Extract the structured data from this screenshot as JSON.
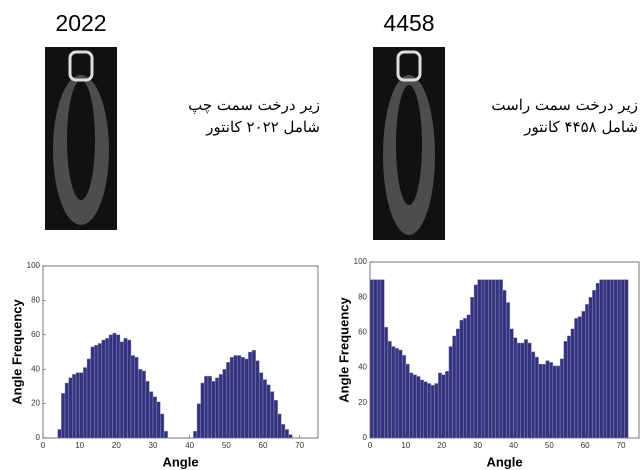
{
  "panels": [
    {
      "title": "2022",
      "caption": [
        "زیر درخت سمت چپ",
        "شامل ۲۰۲۲ کانتور"
      ]
    },
    {
      "title": "4458",
      "caption": [
        "زیر درخت سمت راست",
        "شامل ۴۴۵۸ کانتور"
      ]
    }
  ],
  "chart_data": [
    {
      "type": "histogram",
      "xlabel": "Angle",
      "ylabel": "Angle Frequency",
      "color": "#34337e",
      "xlim": [
        0,
        75
      ],
      "ylim": [
        0,
        100
      ],
      "xticks": [
        0,
        10,
        20,
        30,
        40,
        50,
        60,
        70
      ],
      "yticks": [
        0,
        20,
        40,
        60,
        80,
        100
      ],
      "bins": [
        4,
        5,
        6,
        7,
        8,
        9,
        10,
        11,
        12,
        13,
        14,
        15,
        16,
        17,
        18,
        19,
        20,
        21,
        22,
        23,
        24,
        25,
        26,
        27,
        28,
        29,
        30,
        31,
        32,
        33,
        34,
        35,
        36,
        37,
        38,
        39,
        40,
        41,
        42,
        43,
        44,
        45,
        46,
        47,
        48,
        49,
        50,
        51,
        52,
        53,
        54,
        55,
        56,
        57,
        58,
        59,
        60,
        61,
        62,
        63,
        64,
        65,
        66,
        67,
        68
      ],
      "values": [
        5,
        26,
        32,
        35,
        37,
        38,
        38,
        41,
        46,
        53,
        54,
        55,
        57,
        58,
        60,
        61,
        60,
        56,
        58,
        57,
        48,
        47,
        40,
        39,
        33,
        27,
        24,
        21,
        14,
        4,
        0,
        0,
        0,
        0,
        0,
        0,
        0,
        4,
        20,
        32,
        36,
        36,
        33,
        35,
        37,
        40,
        44,
        47,
        48,
        48,
        47,
        46,
        50,
        51,
        45,
        38,
        34,
        31,
        27,
        22,
        14,
        8,
        5,
        2
      ]
    },
    {
      "type": "histogram",
      "xlabel": "Angle",
      "ylabel": "Angle Frequency",
      "color": "#34337e",
      "xlim": [
        0,
        75
      ],
      "ylim": [
        0,
        100
      ],
      "xticks": [
        0,
        10,
        20,
        30,
        40,
        50,
        60,
        70
      ],
      "yticks": [
        0,
        20,
        40,
        60,
        80,
        100
      ],
      "bins": [
        0,
        1,
        2,
        3,
        4,
        5,
        6,
        7,
        8,
        9,
        10,
        11,
        12,
        13,
        14,
        15,
        16,
        17,
        18,
        19,
        20,
        21,
        22,
        23,
        24,
        25,
        26,
        27,
        28,
        29,
        30,
        31,
        32,
        33,
        34,
        35,
        36,
        37,
        38,
        39,
        40,
        41,
        42,
        43,
        44,
        45,
        46,
        47,
        48,
        49,
        50,
        51,
        52,
        53,
        54,
        55,
        56,
        57,
        58,
        59,
        60,
        61,
        62,
        63,
        64,
        65,
        66,
        67,
        68,
        69,
        70,
        71,
        72
      ],
      "values": [
        90,
        90,
        90,
        90,
        63,
        55,
        52,
        51,
        50,
        47,
        42,
        37,
        36,
        35,
        33,
        32,
        31,
        30,
        31,
        37,
        36,
        38,
        52,
        58,
        62,
        67,
        68,
        70,
        80,
        87,
        90,
        90,
        90,
        90,
        90,
        90,
        90,
        84,
        77,
        62,
        57,
        54,
        54,
        56,
        54,
        49,
        46,
        42,
        42,
        44,
        43,
        41,
        41,
        45,
        55,
        58,
        62,
        68,
        69,
        72,
        76,
        80,
        84,
        88,
        90,
        90,
        90,
        90,
        90,
        90,
        90,
        90
      ]
    }
  ]
}
